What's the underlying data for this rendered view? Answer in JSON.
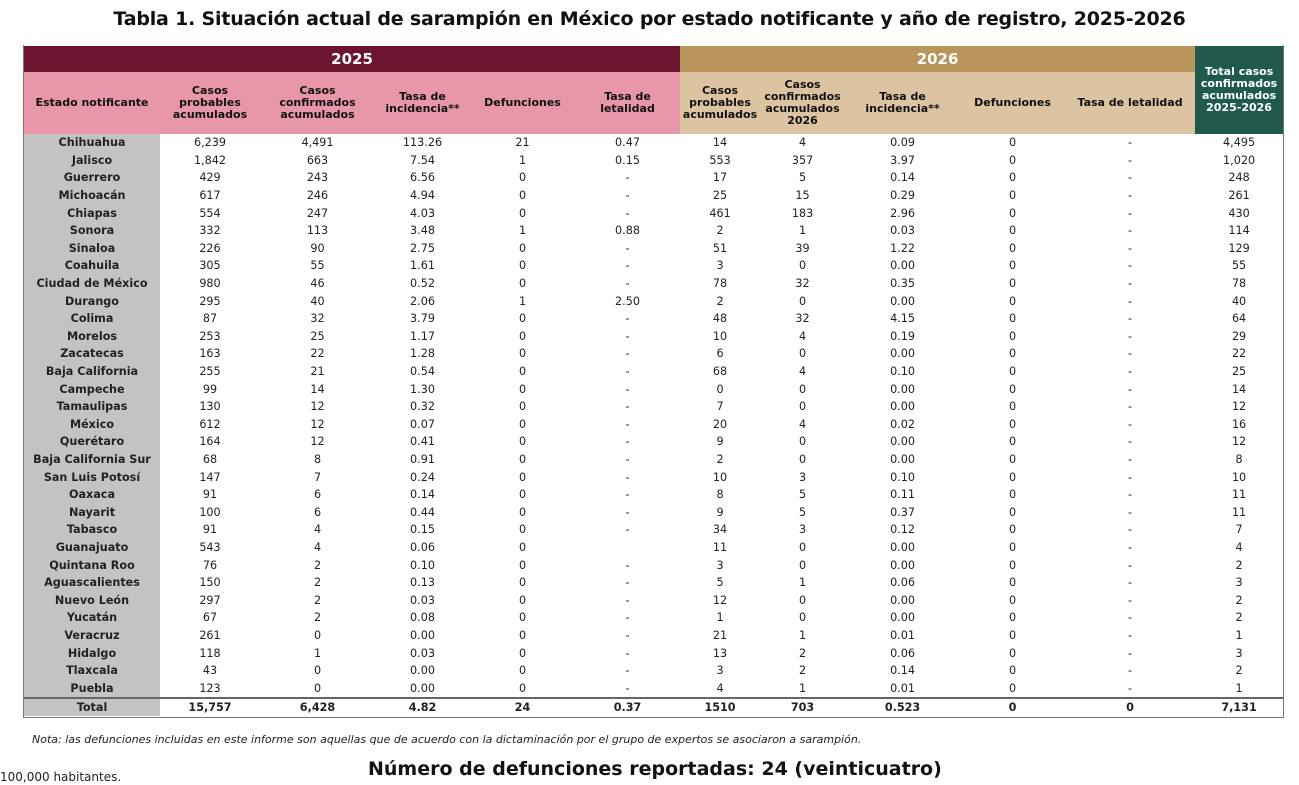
{
  "title": "Tabla 1. Situación actual de sarampión en México por estado notificante y año de registro, 2025-2026",
  "header": {
    "year_2025": "2025",
    "year_2026": "2026",
    "total_col": "Total casos confirmados acumulados 2025-2026",
    "col_estado": "Estado notificante",
    "cols_2025": [
      "Casos probables acumulados",
      "Casos confirmados acumulados",
      "Tasa de incidencia**",
      "Defunciones",
      "Tasa de letalidad"
    ],
    "cols_2026": [
      "Casos probables acumulados",
      "Casos confirmados acumulados 2026",
      "Tasa de incidencia**",
      "Defunciones",
      "Tasa de letalidad"
    ]
  },
  "colors": {
    "band_2025": "#6d1530",
    "header_2025": "#e897aa",
    "band_2026": "#b8955a",
    "header_2026": "#dcc3a2",
    "total_header": "#1f5a4d",
    "state_col": "#c3c3c3"
  },
  "rows": [
    [
      "Chihuahua",
      "6,239",
      "4,491",
      "113.26",
      "21",
      "0.47",
      "14",
      "4",
      "0.09",
      "0",
      "-",
      "4,495"
    ],
    [
      "Jalisco",
      "1,842",
      "663",
      "7.54",
      "1",
      "0.15",
      "553",
      "357",
      "3.97",
      "0",
      "-",
      "1,020"
    ],
    [
      "Guerrero",
      "429",
      "243",
      "6.56",
      "0",
      "-",
      "17",
      "5",
      "0.14",
      "0",
      "-",
      "248"
    ],
    [
      "Michoacán",
      "617",
      "246",
      "4.94",
      "0",
      "-",
      "25",
      "15",
      "0.29",
      "0",
      "-",
      "261"
    ],
    [
      "Chiapas",
      "554",
      "247",
      "4.03",
      "0",
      "-",
      "461",
      "183",
      "2.96",
      "0",
      "-",
      "430"
    ],
    [
      "Sonora",
      "332",
      "113",
      "3.48",
      "1",
      "0.88",
      "2",
      "1",
      "0.03",
      "0",
      "-",
      "114"
    ],
    [
      "Sinaloa",
      "226",
      "90",
      "2.75",
      "0",
      "-",
      "51",
      "39",
      "1.22",
      "0",
      "-",
      "129"
    ],
    [
      "Coahuila",
      "305",
      "55",
      "1.61",
      "0",
      "-",
      "3",
      "0",
      "0.00",
      "0",
      "-",
      "55"
    ],
    [
      "Ciudad de México",
      "980",
      "46",
      "0.52",
      "0",
      "-",
      "78",
      "32",
      "0.35",
      "0",
      "-",
      "78"
    ],
    [
      "Durango",
      "295",
      "40",
      "2.06",
      "1",
      "2.50",
      "2",
      "0",
      "0.00",
      "0",
      "-",
      "40"
    ],
    [
      "Colima",
      "87",
      "32",
      "3.79",
      "0",
      "-",
      "48",
      "32",
      "4.15",
      "0",
      "-",
      "64"
    ],
    [
      "Morelos",
      "253",
      "25",
      "1.17",
      "0",
      "-",
      "10",
      "4",
      "0.19",
      "0",
      "-",
      "29"
    ],
    [
      "Zacatecas",
      "163",
      "22",
      "1.28",
      "0",
      "-",
      "6",
      "0",
      "0.00",
      "0",
      "-",
      "22"
    ],
    [
      "Baja California",
      "255",
      "21",
      "0.54",
      "0",
      "-",
      "68",
      "4",
      "0.10",
      "0",
      "-",
      "25"
    ],
    [
      "Campeche",
      "99",
      "14",
      "1.30",
      "0",
      "-",
      "0",
      "0",
      "0.00",
      "0",
      "-",
      "14"
    ],
    [
      "Tamaulipas",
      "130",
      "12",
      "0.32",
      "0",
      "-",
      "7",
      "0",
      "0.00",
      "0",
      "-",
      "12"
    ],
    [
      "México",
      "612",
      "12",
      "0.07",
      "0",
      "-",
      "20",
      "4",
      "0.02",
      "0",
      "-",
      "16"
    ],
    [
      "Querétaro",
      "164",
      "12",
      "0.41",
      "0",
      "-",
      "9",
      "0",
      "0.00",
      "0",
      "-",
      "12"
    ],
    [
      "Baja California Sur",
      "68",
      "8",
      "0.91",
      "0",
      "-",
      "2",
      "0",
      "0.00",
      "0",
      "-",
      "8"
    ],
    [
      "San Luis Potosí",
      "147",
      "7",
      "0.24",
      "0",
      "-",
      "10",
      "3",
      "0.10",
      "0",
      "-",
      "10"
    ],
    [
      "Oaxaca",
      "91",
      "6",
      "0.14",
      "0",
      "-",
      "8",
      "5",
      "0.11",
      "0",
      "-",
      "11"
    ],
    [
      "Nayarit",
      "100",
      "6",
      "0.44",
      "0",
      "-",
      "9",
      "5",
      "0.37",
      "0",
      "-",
      "11"
    ],
    [
      "Tabasco",
      "91",
      "4",
      "0.15",
      "0",
      "-",
      "34",
      "3",
      "0.12",
      "0",
      "-",
      "7"
    ],
    [
      "Guanajuato",
      "543",
      "4",
      "0.06",
      "0",
      "",
      "11",
      "0",
      "0.00",
      "0",
      "-",
      "4"
    ],
    [
      "Quintana Roo",
      "76",
      "2",
      "0.10",
      "0",
      "-",
      "3",
      "0",
      "0.00",
      "0",
      "-",
      "2"
    ],
    [
      "Aguascalientes",
      "150",
      "2",
      "0.13",
      "0",
      "-",
      "5",
      "1",
      "0.06",
      "0",
      "-",
      "3"
    ],
    [
      "Nuevo León",
      "297",
      "2",
      "0.03",
      "0",
      "-",
      "12",
      "0",
      "0.00",
      "0",
      "-",
      "2"
    ],
    [
      "Yucatán",
      "67",
      "2",
      "0.08",
      "0",
      "-",
      "1",
      "0",
      "0.00",
      "0",
      "-",
      "2"
    ],
    [
      "Veracruz",
      "261",
      "0",
      "0.00",
      "0",
      "-",
      "21",
      "1",
      "0.01",
      "0",
      "-",
      "1"
    ],
    [
      "Hidalgo",
      "118",
      "1",
      "0.03",
      "0",
      "-",
      "13",
      "2",
      "0.06",
      "0",
      "-",
      "3"
    ],
    [
      "Tlaxcala",
      "43",
      "0",
      "0.00",
      "0",
      "-",
      "3",
      "2",
      "0.14",
      "0",
      "-",
      "2"
    ],
    [
      "Puebla",
      "123",
      "0",
      "0.00",
      "0",
      "-",
      "4",
      "1",
      "0.01",
      "0",
      "-",
      "1"
    ]
  ],
  "total_row": [
    "Total",
    "15,757",
    "6,428",
    "4.82",
    "24",
    "0.37",
    "1510",
    "703",
    "0.523",
    "0",
    "0",
    "7,131"
  ],
  "note": "Nota: las defunciones incluidas en este informe son aquellas que de acuerdo con la dictaminación por el grupo de expertos se asociaron a sarampión.",
  "deaths_summary": "Número de defunciones reportadas: 24 (veinticuatro)",
  "footnote_fragment": "100,000 habitantes."
}
